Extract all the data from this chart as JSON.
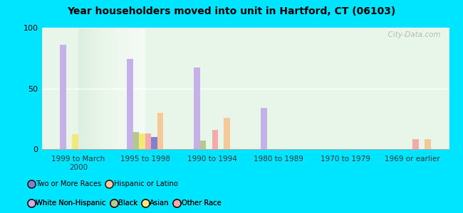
{
  "title": "Year householders moved into unit in Hartford, CT (06103)",
  "categories": [
    "1999 to March\n2000",
    "1995 to 1998",
    "1990 to 1994",
    "1980 to 1989",
    "1970 to 1979",
    "1969 or earlier"
  ],
  "series_order": [
    "White Non-Hispanic",
    "Black",
    "Asian",
    "Other Race",
    "Two or More Races",
    "Hispanic or Latino"
  ],
  "series": {
    "White Non-Hispanic": [
      86,
      74,
      67,
      34,
      0,
      0
    ],
    "Black": [
      0,
      14,
      7,
      0,
      0,
      0
    ],
    "Asian": [
      12,
      13,
      0,
      0,
      0,
      0
    ],
    "Other Race": [
      0,
      13,
      16,
      0,
      0,
      8
    ],
    "Two or More Races": [
      0,
      10,
      0,
      0,
      0,
      0
    ],
    "Hispanic or Latino": [
      0,
      30,
      26,
      0,
      0,
      8
    ]
  },
  "colors": {
    "White Non-Hispanic": "#c5b0e8",
    "Black": "#b5c98a",
    "Asian": "#f5e87a",
    "Other Race": "#f4aaaa",
    "Two or More Races": "#8080cc",
    "Hispanic or Latino": "#f5c89a"
  },
  "ylim": [
    0,
    100
  ],
  "yticks": [
    0,
    50,
    100
  ],
  "outer_background": "#00e5ff",
  "watermark": "  City-Data.com",
  "legend_row1": [
    "White Non-Hispanic",
    "Black",
    "Asian",
    "Other Race"
  ],
  "legend_row2": [
    "Two or More Races",
    "Hispanic or Latino"
  ]
}
